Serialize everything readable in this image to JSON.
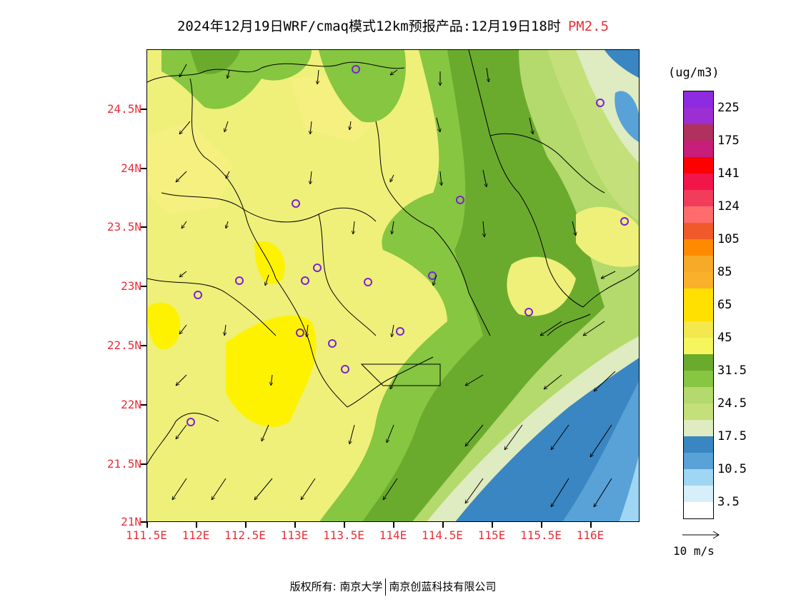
{
  "title": {
    "main": "2024年12月19日WRF/cmaq模式12km预报产品:12月19日18时",
    "variable": "PM2.5"
  },
  "axes": {
    "lat_labels": [
      "24.5N",
      "24N",
      "23.5N",
      "23N",
      "22.5N",
      "22N",
      "21.5N",
      "21N"
    ],
    "lon_labels": [
      "111.5E",
      "112E",
      "112.5E",
      "113E",
      "113.5E",
      "114E",
      "114.5E",
      "115E",
      "115.5E",
      "116E"
    ]
  },
  "colorbar": {
    "unit": "(ug/m3)",
    "colors": [
      "#8c2be0",
      "#9b2fd4",
      "#b0305e",
      "#c81e7a",
      "#ff0000",
      "#f2154a",
      "#f23c5c",
      "#ff6c6c",
      "#f05a2a",
      "#ff8a00",
      "#f7a928",
      "#fab02a",
      "#ffe000",
      "#ffe000",
      "#f3e84d",
      "#f5f55d",
      "#6aab2e",
      "#86c641",
      "#b4d96c",
      "#c4e07a",
      "#dfebc0",
      "#3a86c2",
      "#58a2d8",
      "#9fd6f4",
      "#d7effb",
      "#ffffff"
    ],
    "labels": [
      "225",
      "175",
      "141",
      "124",
      "105",
      "85",
      "65",
      "45",
      "31.5",
      "24.5",
      "17.5",
      "10.5",
      "3.5"
    ]
  },
  "wind_reference": {
    "label": "10 m/s"
  },
  "footer": {
    "left": "版权所有: 南京大学",
    "right": "南京创蓝科技有限公司"
  }
}
